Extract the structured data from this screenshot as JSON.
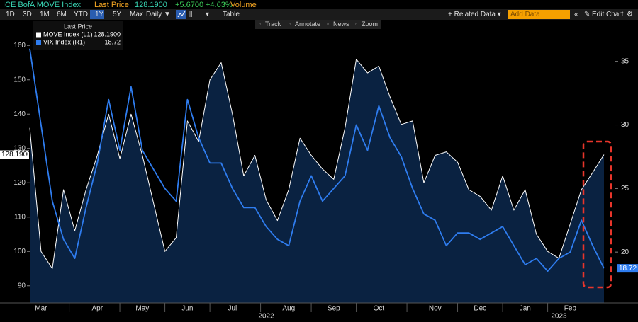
{
  "toolbar": {
    "title": "ICE BofA MOVE Index",
    "price_label": "Last Price",
    "last_price": "128.1900",
    "change": "+5.6700",
    "change_pct": "+4.63%",
    "volume_label": "Volume",
    "ranges": [
      "1D",
      "3D",
      "1M",
      "6M",
      "YTD",
      "1Y",
      "5Y",
      "Max"
    ],
    "active_range_index": 5,
    "frequency": "Daily ▼",
    "table": "Table",
    "related": "+ Related Data ▾",
    "add_data": "Add Data",
    "edit_chart": "Edit Chart",
    "tools": [
      "Track",
      "Annotate",
      "News",
      "Zoom"
    ]
  },
  "chart_data": {
    "type": "line",
    "legend_title": "Last Price",
    "categories": [
      null,
      "Mar",
      null,
      null,
      null,
      null,
      "Apr",
      null,
      null,
      null,
      "May",
      null,
      null,
      null,
      "Jun",
      null,
      null,
      null,
      "Jul",
      null,
      null,
      null,
      null,
      "Aug",
      null,
      null,
      null,
      "Sep",
      null,
      null,
      null,
      "Oct",
      null,
      null,
      null,
      null,
      "Nov",
      null,
      null,
      null,
      "Dec",
      null,
      null,
      null,
      "Jan",
      null,
      null,
      null,
      "Feb",
      null,
      null,
      null
    ],
    "year_categories": [
      null,
      null,
      null,
      null,
      null,
      null,
      null,
      null,
      null,
      null,
      null,
      null,
      null,
      null,
      null,
      null,
      null,
      null,
      null,
      null,
      null,
      "2022",
      null,
      null,
      null,
      null,
      null,
      null,
      null,
      null,
      null,
      null,
      null,
      null,
      null,
      null,
      null,
      null,
      null,
      null,
      null,
      null,
      null,
      null,
      null,
      null,
      null,
      "2023",
      null,
      null,
      null,
      null
    ],
    "series": [
      {
        "name": "MOVE Index (L1)",
        "color": "#ffffff",
        "fill": "#0b2444",
        "axis": "y",
        "last_label": "128.1900",
        "values": [
          136,
          100,
          95,
          118,
          106,
          118,
          128,
          140,
          127,
          140,
          128,
          114,
          100,
          104,
          138,
          132,
          150,
          155,
          140,
          122,
          128,
          115,
          109,
          118,
          133,
          128,
          124,
          121,
          136,
          156,
          152,
          154,
          145,
          137,
          138,
          120,
          128,
          129,
          126,
          118,
          116,
          112,
          122,
          112,
          118,
          105,
          100,
          98,
          108,
          118,
          123,
          128.19
        ]
      },
      {
        "name": "VIX Index (R1)",
        "color": "#2f7df0",
        "axis": "y2",
        "last_label": "18.72",
        "values": [
          36,
          30,
          24,
          21,
          19.5,
          23.5,
          27,
          32,
          28,
          33,
          28,
          26.5,
          25,
          24,
          32,
          29,
          27,
          27,
          25,
          23.5,
          23.5,
          22,
          21,
          20.5,
          24,
          26,
          24,
          25,
          26,
          30,
          28,
          31.5,
          29,
          27.5,
          25,
          23,
          22.5,
          20.5,
          21.5,
          21.5,
          21,
          21.5,
          22,
          20.5,
          19,
          19.5,
          18.5,
          19.5,
          20,
          22.5,
          20.5,
          18.72
        ]
      }
    ],
    "ylim": [
      85,
      165
    ],
    "yticks": [
      90,
      100,
      110,
      120,
      130,
      140,
      150,
      160
    ],
    "y2lim": [
      16,
      37.6
    ],
    "y2ticks": [
      20,
      25,
      30,
      35
    ]
  }
}
